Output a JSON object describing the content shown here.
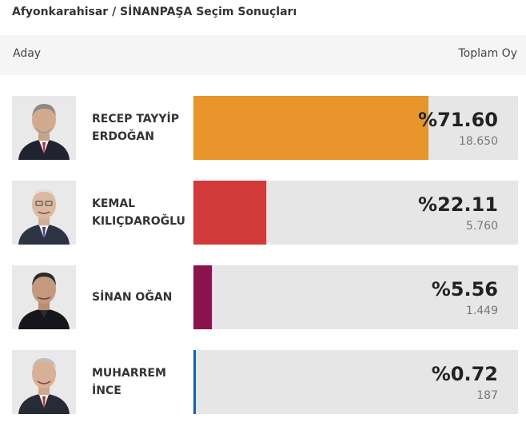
{
  "page": {
    "title": "Afyonkarahisar / SİNANPAŞA Seçim Sonuçları"
  },
  "table": {
    "col_candidate": "Aday",
    "col_total": "Toplam Oy"
  },
  "candidates": [
    {
      "name_line1": "RECEP TAYYİP",
      "name_line2": "ERDOĞAN",
      "percent_label": "%71.60",
      "percent": 71.6,
      "votes": "18.650",
      "color": "#e8952b"
    },
    {
      "name_line1": "KEMAL",
      "name_line2": "KILIÇDAROĞLU",
      "percent_label": "%22.11",
      "percent": 22.11,
      "votes": "5.760",
      "color": "#d23939"
    },
    {
      "name_line1": "SİNAN OĞAN",
      "name_line2": "",
      "percent_label": "%5.56",
      "percent": 5.56,
      "votes": "1.449",
      "color": "#8b1450"
    },
    {
      "name_line1": "MUHARREM",
      "name_line2": "İNCE",
      "percent_label": "%0.72",
      "percent": 0.72,
      "votes": "187",
      "color": "#1e5fa0"
    }
  ]
}
